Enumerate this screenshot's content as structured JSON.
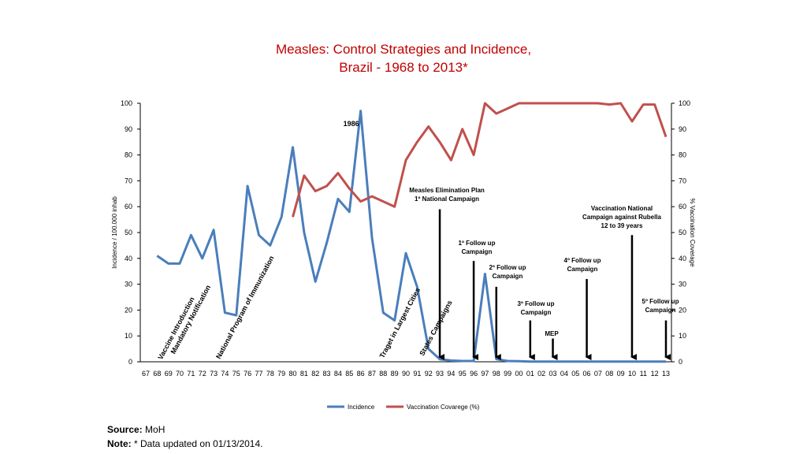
{
  "title_line1": "Measles: Control Strategies and Incidence,",
  "title_line2": "Brazil - 1968 to 2013*",
  "footer": {
    "source_label": "Source:",
    "source_value": " MoH",
    "note_label": "Note:",
    "note_value": " * Data updated on  01/13/2014."
  },
  "colors": {
    "incidence": "#4a7ebb",
    "coverage": "#c0504d",
    "title": "#c00000"
  },
  "chart_data": {
    "type": "line",
    "title": "Measles: Control Strategies and Incidence, Brazil - 1968 to 2013*",
    "ylabel_left": "Incidence / 100.000 inhab",
    "ylabel_right": "% Vaccination Coverage",
    "ylim": [
      0,
      100
    ],
    "yticks": [
      0,
      10,
      20,
      30,
      40,
      50,
      60,
      70,
      80,
      90,
      100
    ],
    "categories": [
      "67",
      "68",
      "69",
      "70",
      "71",
      "72",
      "73",
      "74",
      "75",
      "76",
      "77",
      "78",
      "79",
      "80",
      "81",
      "82",
      "83",
      "84",
      "85",
      "86",
      "87",
      "88",
      "89",
      "90",
      "91",
      "92",
      "93",
      "94",
      "95",
      "96",
      "97",
      "98",
      "99",
      "00",
      "01",
      "02",
      "03",
      "04",
      "05",
      "06",
      "07",
      "08",
      "09",
      "10",
      "11",
      "12",
      "13"
    ],
    "series": [
      {
        "name": "Incidence",
        "values": [
          null,
          41,
          38,
          38,
          49,
          40,
          51,
          19,
          18,
          68,
          49,
          45,
          56,
          83,
          50,
          31,
          46,
          63,
          58,
          97,
          48,
          19,
          16,
          42,
          29,
          5,
          1,
          0.5,
          0.3,
          0.3,
          34,
          1,
          0.3,
          0.2,
          0.1,
          0.1,
          0.1,
          0.1,
          0.1,
          0.1,
          0.1,
          0.1,
          0.1,
          0.1,
          0.1,
          0.1,
          0.1
        ]
      },
      {
        "name": "Vaccination Covarege (%)",
        "values": [
          null,
          null,
          null,
          null,
          null,
          null,
          null,
          null,
          null,
          null,
          null,
          null,
          null,
          56,
          72,
          66,
          68,
          73,
          67,
          62,
          64,
          62,
          60,
          78,
          85,
          91,
          85,
          78,
          90,
          80,
          100,
          96,
          98,
          100,
          100,
          100,
          100,
          100,
          100,
          100,
          100,
          99.5,
          100,
          93,
          99.5,
          99.5,
          87
        ]
      }
    ],
    "legend_position": "bottom",
    "annotations": {
      "year_label": {
        "text": "1986",
        "x": "86"
      },
      "rotated": [
        {
          "line1": "Vaccine Introduction",
          "line2": "Mandatory Notification",
          "x": "68"
        },
        {
          "line1": "National Program of Immunization",
          "x": "73"
        },
        {
          "line1": "Traget in Largest Cities",
          "x": "89"
        },
        {
          "line1": "States Campaigns",
          "x": "91"
        }
      ],
      "campaigns": [
        {
          "lines": [
            "Measles Elimination Plan",
            "1º National Campaign"
          ],
          "x": "93",
          "top": 59
        },
        {
          "lines": [
            "1º Follow up",
            "Campaign"
          ],
          "x": "96",
          "top": 39
        },
        {
          "lines": [
            "2º Follow up",
            "Campaign"
          ],
          "x": "98",
          "top": 29
        },
        {
          "lines": [
            "3º Follow up",
            "Campaign"
          ],
          "x": "01",
          "top": 16
        },
        {
          "lines": [
            "MEP"
          ],
          "x": "03",
          "top": 9
        },
        {
          "lines": [
            "4º Follow up",
            "Campaign"
          ],
          "x": "06",
          "top": 32
        },
        {
          "lines": [
            "Vaccination National",
            "Campaign  against Rubella",
            "12 to 39 years"
          ],
          "x": "10",
          "top": 49
        },
        {
          "lines": [
            "5º Follow up",
            "Campaign"
          ],
          "x": "13",
          "top": 16
        }
      ]
    }
  }
}
